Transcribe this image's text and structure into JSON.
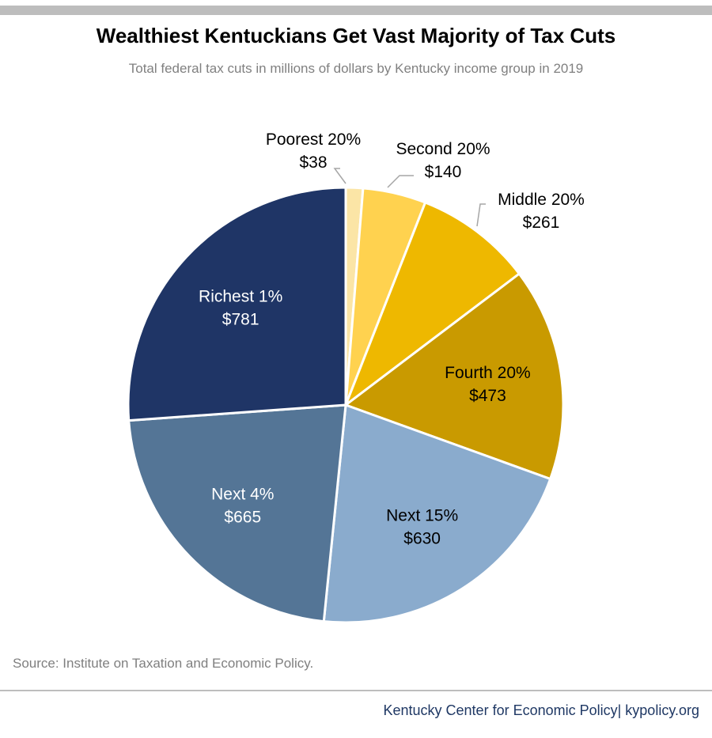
{
  "header": {
    "title": "Wealthiest Kentuckians Get Vast Majority of Tax Cuts",
    "subtitle": "Total federal tax cuts in millions of dollars by Kentucky income group in 2019"
  },
  "chart_data": {
    "type": "pie",
    "unit": "millions of dollars",
    "slices": [
      {
        "label": "Poorest 20%",
        "value_label": "$38",
        "value": 38,
        "color": "#fbe5a6",
        "label_color": "#000000"
      },
      {
        "label": "Second 20%",
        "value_label": "$140",
        "value": 140,
        "color": "#ffd24f",
        "label_color": "#000000"
      },
      {
        "label": "Middle 20%",
        "value_label": "$261",
        "value": 261,
        "color": "#eeb800",
        "label_color": "#000000"
      },
      {
        "label": "Fourth 20%",
        "value_label": "$473",
        "value": 473,
        "color": "#c99a00",
        "label_color": "#000000"
      },
      {
        "label": "Next 15%",
        "value_label": "$630",
        "value": 630,
        "color": "#8aabcd",
        "label_color": "#000000"
      },
      {
        "label": "Next 4%",
        "value_label": "$665",
        "value": 665,
        "color": "#547596",
        "label_color": "#ffffff"
      },
      {
        "label": "Richest 1%",
        "value_label": "$781",
        "value": 781,
        "color": "#1f3566",
        "label_color": "#ffffff"
      }
    ]
  },
  "footer": {
    "source": "Source: Institute on Taxation and Economic Policy.",
    "credit": "Kentucky Center for Economic Policy| kypolicy.org"
  }
}
